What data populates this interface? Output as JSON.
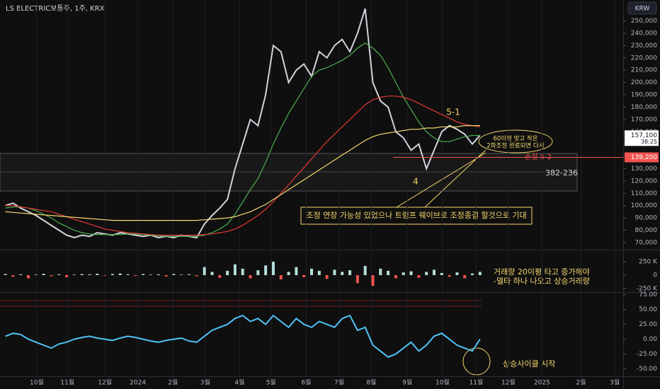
{
  "header": {
    "title": "LS ELECTRIC보통주, 1주, KRX",
    "currency": "KRW"
  },
  "chart_data": [
    {
      "type": "line",
      "x": [
        0,
        1,
        2,
        3,
        4,
        5,
        6,
        7,
        8,
        9,
        10,
        11,
        12,
        13,
        14,
        15,
        16,
        17,
        18,
        19,
        20,
        21,
        22,
        23,
        24,
        25,
        26,
        27,
        28,
        29,
        30,
        31,
        32,
        33,
        34,
        35,
        36,
        37,
        38,
        39,
        40,
        41,
        42,
        43,
        44,
        45,
        46,
        47,
        48,
        49,
        50,
        51,
        52,
        53,
        54,
        55,
        56,
        57,
        58,
        59,
        60,
        61,
        62
      ],
      "xlim": [
        -0.7,
        80.7
      ],
      "xticks": [
        {
          "value": 4.1,
          "label": "10월"
        },
        {
          "value": 8.1,
          "label": "11월"
        },
        {
          "value": 13,
          "label": "12월"
        },
        {
          "value": 17.3,
          "label": "2024"
        },
        {
          "value": 21.9,
          "label": "2월"
        },
        {
          "value": 26.1,
          "label": "3월"
        },
        {
          "value": 30.6,
          "label": "4월"
        },
        {
          "value": 34.7,
          "label": "5월"
        },
        {
          "value": 39.3,
          "label": "6월"
        },
        {
          "value": 43.6,
          "label": "7월"
        },
        {
          "value": 47.8,
          "label": "8월"
        },
        {
          "value": 52.5,
          "label": "9월"
        },
        {
          "value": 57.1,
          "label": "10월"
        },
        {
          "value": 61.5,
          "label": "11월"
        },
        {
          "value": 65.7,
          "label": "12월"
        },
        {
          "value": 70.1,
          "label": "2025"
        },
        {
          "value": 75.2,
          "label": "2월"
        },
        {
          "value": 79.6,
          "label": "3월"
        }
      ],
      "ylim": [
        64800,
        267000
      ],
      "yticks": [
        {
          "value": 70000,
          "label": "70,000"
        },
        {
          "value": 80000,
          "label": "80,000"
        },
        {
          "value": 90000,
          "label": "90,000"
        },
        {
          "value": 100000,
          "label": "100,000"
        },
        {
          "value": 110000,
          "label": "110,000"
        },
        {
          "value": 120000,
          "label": "120,000"
        },
        {
          "value": 130000,
          "label": "130,000"
        },
        {
          "value": 140000,
          "label": "140,000"
        },
        {
          "value": 150000,
          "label": "150,000"
        },
        {
          "value": 160000,
          "label": "160,000"
        },
        {
          "value": 170000,
          "label": "170,000"
        },
        {
          "value": 180000,
          "label": "180,000"
        },
        {
          "value": 190000,
          "label": "190,000"
        },
        {
          "value": 200000,
          "label": "200,000"
        },
        {
          "value": 210000,
          "label": "210,000"
        },
        {
          "value": 220000,
          "label": "220,000"
        },
        {
          "value": 230000,
          "label": "230,000"
        },
        {
          "value": 240000,
          "label": "240,000"
        },
        {
          "value": 250000,
          "label": "250,000"
        }
      ],
      "series": [
        {
          "color": "#d1d4dc",
          "values": [
            100000,
            102000,
            98000,
            95000,
            92000,
            88000,
            84000,
            80000,
            76000,
            74000,
            76000,
            75000,
            78000,
            77000,
            76000,
            78000,
            77000,
            76000,
            75000,
            76000,
            74000,
            75000,
            74000,
            76000,
            75000,
            74000,
            85000,
            92000,
            98000,
            105000,
            130000,
            150000,
            170000,
            165000,
            190000,
            230000,
            225000,
            200000,
            210000,
            215000,
            205000,
            225000,
            220000,
            230000,
            235000,
            225000,
            240000,
            260000,
            200000,
            185000,
            180000,
            160000,
            155000,
            145000,
            150000,
            130000,
            145000,
            160000,
            165000,
            162000,
            158000,
            150000,
            157100
          ]
        },
        {
          "color": "#4caf50",
          "values": [
            98000,
            99000,
            99000,
            98000,
            96000,
            93000,
            90000,
            86000,
            83000,
            80000,
            78000,
            77000,
            76500,
            76500,
            76500,
            76500,
            77000,
            77000,
            76500,
            76000,
            75500,
            75000,
            75000,
            75000,
            75000,
            75000,
            76000,
            78000,
            81000,
            85000,
            93000,
            103000,
            113000,
            122000,
            135000,
            150000,
            163000,
            175000,
            185000,
            195000,
            205000,
            210000,
            212000,
            215000,
            218000,
            222000,
            228000,
            232000,
            228000,
            222000,
            212000,
            200000,
            188000,
            178000,
            168000,
            160000,
            155000,
            152000,
            152000,
            154000,
            156000,
            157000,
            157000
          ]
        },
        {
          "color": "#e53935",
          "values": [
            100000,
            100000,
            99000,
            98000,
            97000,
            96000,
            95000,
            93000,
            91000,
            89000,
            87000,
            85000,
            83000,
            81000,
            80000,
            79000,
            78000,
            77500,
            77000,
            76500,
            76000,
            76000,
            76000,
            76000,
            76000,
            76000,
            76500,
            77000,
            78000,
            79000,
            81000,
            84000,
            88000,
            92000,
            97000,
            103000,
            110000,
            117000,
            124000,
            131000,
            138000,
            145000,
            152000,
            158000,
            164000,
            170000,
            176000,
            182000,
            186000,
            188000,
            189000,
            189000,
            188000,
            186000,
            183000,
            180000,
            177000,
            174000,
            171000,
            168000,
            166000,
            165000,
            164000
          ]
        },
        {
          "color": "#f5d76e",
          "values": [
            95000,
            94500,
            94000,
            93500,
            93000,
            92500,
            92000,
            91500,
            91000,
            90500,
            90000,
            89500,
            89000,
            88500,
            88000,
            88000,
            88000,
            88000,
            88000,
            88000,
            88000,
            88000,
            88000,
            88000,
            88000,
            88000,
            88500,
            89000,
            89500,
            90000,
            91000,
            93000,
            95000,
            98000,
            101000,
            105000,
            109000,
            113000,
            117000,
            121000,
            125000,
            129000,
            133000,
            137000,
            141000,
            145000,
            149000,
            153000,
            156000,
            158000,
            159000,
            160000,
            161000,
            162000,
            162000,
            163000,
            163000,
            164000,
            164000,
            164000,
            165000,
            165000,
            165000
          ]
        }
      ],
      "last_price": {
        "value": 157100,
        "label": "157,100"
      },
      "countdown": "38:25",
      "stop_price": {
        "value": 139200,
        "label": "139,200"
      },
      "annotations": [
        "5-1",
        "4",
        "손절 5-2",
        "382-236",
        "60이평 맞고 작은",
        "2파조정 완료되면 다시",
        "조정 연장 가능성 있었으나 트럼프 웨이브로 조정종결 할것으로 기대"
      ]
    },
    {
      "type": "bar",
      "x": [
        0,
        1,
        2,
        3,
        4,
        5,
        6,
        7,
        8,
        9,
        10,
        11,
        12,
        13,
        14,
        15,
        16,
        17,
        18,
        19,
        20,
        21,
        22,
        23,
        24,
        25,
        26,
        27,
        28,
        29,
        30,
        31,
        32,
        33,
        34,
        35,
        36,
        37,
        38,
        39,
        40,
        41,
        42,
        43,
        44,
        45,
        46,
        47,
        48,
        49,
        50,
        51,
        52,
        53,
        54,
        55,
        56,
        57,
        58,
        59,
        60,
        61,
        62
      ],
      "xlim": [
        -0.7,
        80.7
      ],
      "ylim": [
        -303000,
        447000
      ],
      "yticks": [
        {
          "value": 250000,
          "label": "250 K"
        },
        0,
        {
          "value": -250000,
          "label": "-250 K"
        }
      ],
      "color": "#b2dfdb",
      "negative_color": "#ef5350",
      "values": [
        20000,
        -30000,
        15000,
        -60000,
        10000,
        25000,
        -20000,
        15000,
        -40000,
        10000,
        20000,
        15000,
        25000,
        -10000,
        20000,
        30000,
        15000,
        -15000,
        20000,
        10000,
        15000,
        -25000,
        20000,
        10000,
        15000,
        -20000,
        150000,
        60000,
        -50000,
        80000,
        200000,
        120000,
        -60000,
        90000,
        180000,
        250000,
        -80000,
        60000,
        150000,
        -40000,
        120000,
        80000,
        -70000,
        100000,
        60000,
        90000,
        -150000,
        170000,
        -200000,
        120000,
        80000,
        -60000,
        50000,
        70000,
        -50000,
        60000,
        100000,
        40000,
        -30000,
        50000,
        -60000,
        30000,
        60000
      ],
      "annotations": [
        "거래량 20이평 타고 증가해야",
        "-델타 하나 나오고 상승거래량"
      ]
    },
    {
      "type": "line",
      "x": [
        0,
        1,
        2,
        3,
        4,
        5,
        6,
        7,
        8,
        9,
        10,
        11,
        12,
        13,
        14,
        15,
        16,
        17,
        18,
        19,
        20,
        21,
        22,
        23,
        24,
        25,
        26,
        27,
        28,
        29,
        30,
        31,
        32,
        33,
        34,
        35,
        36,
        37,
        38,
        39,
        40,
        41,
        42,
        43,
        44,
        45,
        46,
        47,
        48,
        49,
        50,
        51,
        52,
        53,
        54,
        55,
        56,
        57,
        58,
        59,
        60,
        61,
        62
      ],
      "xlim": [
        -0.7,
        80.7
      ],
      "ylim": [
        -60,
        77
      ],
      "yticks": [
        {
          "value": 75,
          "label": "75.00"
        },
        {
          "value": 50,
          "label": "50.00"
        },
        {
          "value": 25,
          "label": "25.00"
        },
        {
          "value": 0,
          "label": "0.00"
        },
        {
          "value": -25,
          "label": "-25.00"
        },
        {
          "value": -50,
          "label": "-50.00"
        }
      ],
      "series": [
        {
          "color": "#4fc3f7",
          "values": [
            5,
            10,
            8,
            0,
            -5,
            -10,
            -15,
            -8,
            -5,
            0,
            3,
            5,
            2,
            0,
            -2,
            2,
            5,
            3,
            0,
            -3,
            -5,
            -2,
            0,
            2,
            -3,
            -5,
            5,
            15,
            20,
            25,
            35,
            40,
            30,
            35,
            25,
            40,
            30,
            20,
            35,
            25,
            20,
            30,
            25,
            20,
            35,
            40,
            15,
            20,
            -10,
            -20,
            -30,
            -25,
            -15,
            -5,
            -20,
            -10,
            5,
            10,
            0,
            -10,
            -15,
            -20,
            0
          ]
        }
      ],
      "annotations": [
        "상승사이클 시작"
      ]
    }
  ]
}
